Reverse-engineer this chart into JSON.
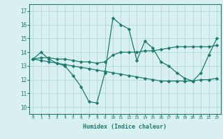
{
  "xlabel": "Humidex (Indice chaleur)",
  "x": [
    0,
    1,
    2,
    3,
    4,
    5,
    6,
    7,
    8,
    9,
    10,
    11,
    12,
    13,
    14,
    15,
    16,
    17,
    18,
    19,
    20,
    21,
    22,
    23
  ],
  "line1": [
    13.5,
    14.0,
    13.5,
    13.2,
    13.0,
    12.3,
    11.5,
    10.4,
    10.3,
    12.5,
    16.5,
    16.0,
    15.7,
    13.4,
    14.8,
    14.3,
    13.3,
    13.0,
    12.5,
    12.1,
    11.9,
    12.5,
    13.8,
    15.0
  ],
  "line2": [
    13.5,
    13.6,
    13.6,
    13.5,
    13.5,
    13.4,
    13.3,
    13.3,
    13.2,
    13.3,
    13.8,
    14.0,
    14.0,
    14.0,
    14.1,
    14.1,
    14.2,
    14.3,
    14.4,
    14.4,
    14.4,
    14.4,
    14.4,
    14.5
  ],
  "line3": [
    13.5,
    13.4,
    13.3,
    13.2,
    13.1,
    13.0,
    12.9,
    12.8,
    12.7,
    12.6,
    12.5,
    12.4,
    12.3,
    12.2,
    12.1,
    12.0,
    11.9,
    11.9,
    11.9,
    11.9,
    11.9,
    12.0,
    12.0,
    12.1
  ],
  "line_color": "#1a7a6e",
  "bg_color": "#d9f0f0",
  "grid_color": "#b0d8d8",
  "ylim": [
    9.5,
    17.5
  ],
  "yticks": [
    10,
    11,
    12,
    13,
    14,
    15,
    16,
    17
  ],
  "xticks": [
    0,
    1,
    2,
    3,
    4,
    5,
    6,
    7,
    8,
    9,
    10,
    11,
    12,
    13,
    14,
    15,
    16,
    17,
    18,
    19,
    20,
    21,
    22,
    23
  ],
  "marker": "D",
  "marker_size": 2.2,
  "linewidth": 0.9
}
